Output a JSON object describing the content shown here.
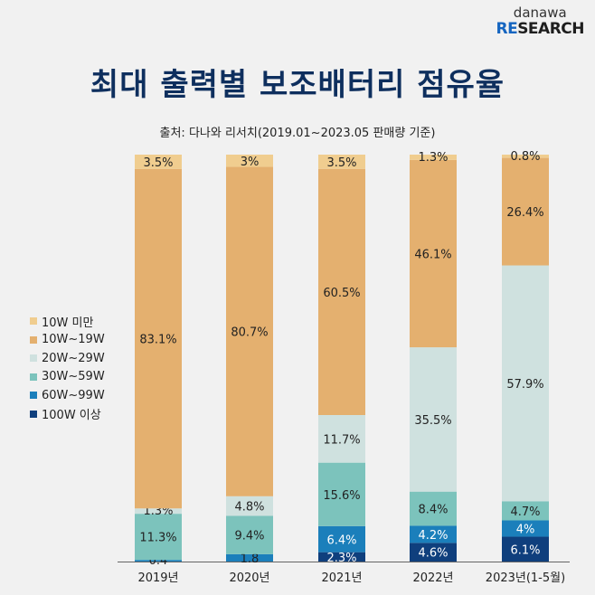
{
  "logo": {
    "line1": "danawa",
    "line2_accent": "RE",
    "line2_rest": "SEARCH"
  },
  "title": "최대 출력별 보조배터리 점유율",
  "source": "출처: 다나와 리서치(2019.01~2023.05 판매량 기준)",
  "chart_data": {
    "type": "bar",
    "stacked": true,
    "title": "최대 출력별 보조배터리 점유율",
    "categories": [
      "2019년",
      "2020년",
      "2021년",
      "2022년",
      "2023년(1-5월)"
    ],
    "series": [
      {
        "name": "100W 이상",
        "color": "#0f3f7d",
        "values": [
          null,
          null,
          2.3,
          4.6,
          6.1
        ],
        "labels": [
          "",
          "",
          "2.3%",
          "4.6%",
          "6.1%"
        ]
      },
      {
        "name": "60W~99W",
        "color": "#1b7fbb",
        "values": [
          0.4,
          1.8,
          6.4,
          4.2,
          4
        ],
        "labels": [
          "0.4",
          "1.8",
          "6.4%",
          "4.2%",
          "4%"
        ]
      },
      {
        "name": "30W~59W",
        "color": "#7cc3bc",
        "values": [
          11.3,
          9.4,
          15.6,
          8.4,
          4.7
        ],
        "labels": [
          "11.3%",
          "9.4%",
          "15.6%",
          "8.4%",
          "4.7%"
        ]
      },
      {
        "name": "20W~29W",
        "color": "#cfe1df",
        "values": [
          1.3,
          4.8,
          11.7,
          35.5,
          57.9
        ],
        "labels": [
          "1.3%",
          "4.8%",
          "11.7%",
          "35.5%",
          "57.9%"
        ]
      },
      {
        "name": "10W~19W",
        "color": "#e4b06f",
        "values": [
          83.1,
          80.7,
          60.5,
          46.1,
          26.4
        ],
        "labels": [
          "83.1%",
          "80.7%",
          "60.5%",
          "46.1%",
          "26.4%"
        ]
      },
      {
        "name": "10W 미만",
        "color": "#f0cd8f",
        "values": [
          3.5,
          3,
          3.5,
          1.3,
          0.8
        ],
        "labels": [
          "3.5%",
          "3%",
          "3.5%",
          "1.3%",
          "0.8%"
        ]
      }
    ],
    "ylim": [
      0,
      100
    ],
    "legend_position": "left"
  }
}
